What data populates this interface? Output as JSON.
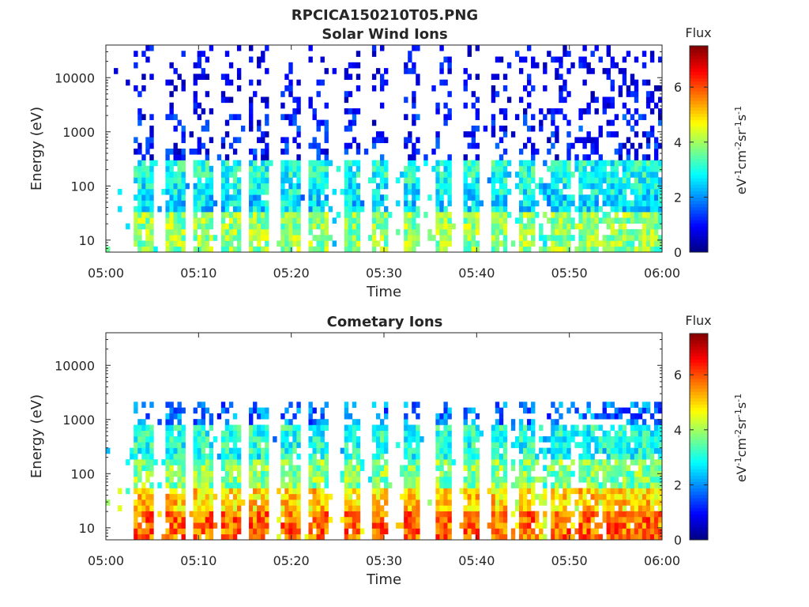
{
  "figure": {
    "title": "RPCICA150210T05.PNG"
  },
  "chart_data": [
    {
      "type": "heatmap",
      "title": "Solar Wind Ions",
      "xlabel": "Time",
      "ylabel": "Energy (eV)",
      "x_ticks": [
        "05:00",
        "05:10",
        "05:20",
        "05:30",
        "05:40",
        "05:50",
        "06:00"
      ],
      "x_range_minutes": [
        0,
        60
      ],
      "y_scale": "log",
      "y_ticks": [
        10,
        100,
        1000,
        10000
      ],
      "y_tick_labels": [
        "10",
        "100",
        "1000",
        "10000"
      ],
      "y_range": [
        6,
        40000
      ],
      "colorbar": {
        "title": "Flux",
        "label": "eV-1cm-2sr-1s-1",
        "ticks": [
          0,
          2,
          4,
          6
        ],
        "range": [
          0,
          7.5
        ],
        "colormap": "jet"
      },
      "colors": [
        "#000080",
        "#0000ff",
        "#0080ff",
        "#00ffff",
        "#80ff80",
        "#ffff00",
        "#ff8000",
        "#ff0000",
        "#800000"
      ],
      "pulses_minutes": [
        4,
        7.5,
        10.5,
        13.5,
        16.5,
        20,
        23,
        26.5,
        29.5,
        33,
        36.5,
        39.5,
        42.5,
        45.5,
        49,
        52,
        55,
        58
      ],
      "layers": [
        {
          "emin": 6,
          "emax": 30,
          "flux": 3.9
        },
        {
          "emin": 30,
          "emax": 70,
          "flux": 2.6
        },
        {
          "emin": 70,
          "emax": 120,
          "flux": 2.8
        },
        {
          "emin": 120,
          "emax": 300,
          "flux": 3.0
        },
        {
          "emin": 300,
          "emax": 2000,
          "flux": 1.0
        },
        {
          "emin": 2000,
          "emax": 40000,
          "flux": 0.6
        }
      ]
    },
    {
      "type": "heatmap",
      "title": "Cometary Ions",
      "xlabel": "Time",
      "ylabel": "Energy (eV)",
      "x_ticks": [
        "05:00",
        "05:10",
        "05:20",
        "05:30",
        "05:40",
        "05:50",
        "06:00"
      ],
      "x_range_minutes": [
        0,
        60
      ],
      "y_scale": "log",
      "y_ticks": [
        10,
        100,
        1000,
        10000
      ],
      "y_tick_labels": [
        "10",
        "100",
        "1000",
        "10000"
      ],
      "y_range": [
        6,
        40000
      ],
      "colorbar": {
        "title": "Flux",
        "label": "eV-1cm-2sr-1s-1",
        "ticks": [
          0,
          2,
          4,
          6
        ],
        "range": [
          0,
          7.5
        ],
        "colormap": "jet"
      },
      "colors": [
        "#000080",
        "#0000ff",
        "#0080ff",
        "#00ffff",
        "#80ff80",
        "#ffff00",
        "#ff8000",
        "#ff0000",
        "#800000"
      ],
      "pulses_minutes": [
        4,
        7.5,
        10.5,
        13.5,
        16.5,
        20,
        23,
        26.5,
        29.5,
        33,
        36.5,
        39.5,
        42.5,
        45.5,
        49,
        52,
        55,
        58
      ],
      "layers": [
        {
          "emin": 6,
          "emax": 20,
          "flux": 5.8
        },
        {
          "emin": 20,
          "emax": 60,
          "flux": 5.0
        },
        {
          "emin": 60,
          "emax": 200,
          "flux": 3.8
        },
        {
          "emin": 200,
          "emax": 800,
          "flux": 3.0
        },
        {
          "emin": 800,
          "emax": 2000,
          "flux": 1.8
        }
      ]
    }
  ]
}
